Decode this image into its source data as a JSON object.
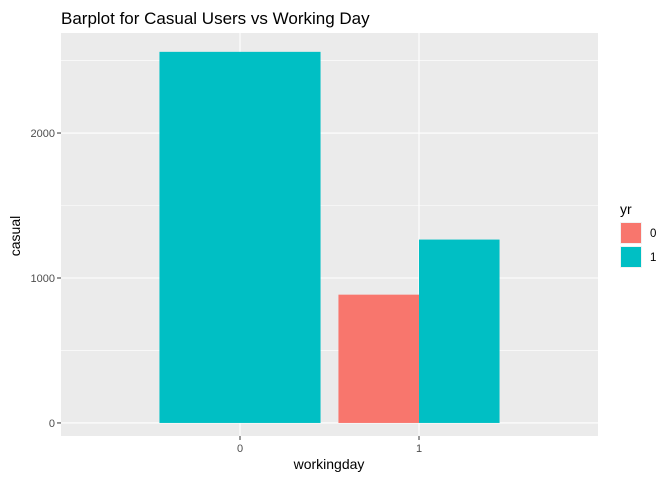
{
  "chart_data": {
    "type": "bar",
    "title": "Barplot for Casual Users vs Working Day",
    "xlabel": "workingday",
    "ylabel": "casual",
    "categories": [
      "0",
      "1"
    ],
    "series": [
      {
        "name": "0",
        "values": [
          null,
          885
        ],
        "color": "#F8766D"
      },
      {
        "name": "1",
        "values": [
          2560,
          1265
        ],
        "color": "#00BFC4"
      }
    ],
    "ylim": [
      -90,
      2690
    ],
    "yticks": [
      0,
      1000,
      2000
    ],
    "ytick_labels": [
      "0",
      "1000",
      "2000"
    ],
    "legend": {
      "title": "yr",
      "position": "right"
    },
    "grid": true,
    "panel_background": "#EBEBEB",
    "grid_color": "#FFFFFF"
  }
}
